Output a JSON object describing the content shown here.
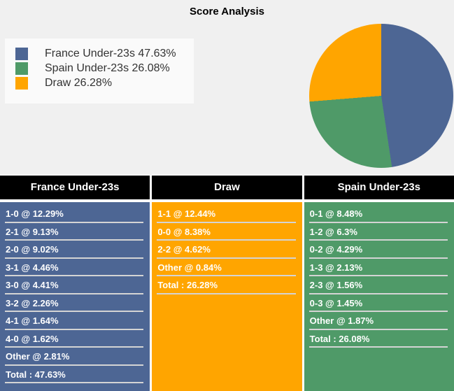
{
  "title": "Score Analysis",
  "colors": {
    "france_blue": "#4d6694",
    "spain_green": "#4f9a68",
    "draw_orange": "#ffa500",
    "header_bg": "#000000",
    "chart_area_bg": "#f0f0f0",
    "legend_bg": "#fafafa",
    "row_separator": "#d4d4d4"
  },
  "chart_data": {
    "type": "pie",
    "title": "Score Analysis",
    "start_angle_deg": 0,
    "direction": "clockwise",
    "legend_position": "left",
    "slices": [
      {
        "label": "France Under-23s",
        "value": 47.63,
        "color": "#4d6694"
      },
      {
        "label": "Spain Under-23s",
        "value": 26.08,
        "color": "#4f9a68"
      },
      {
        "label": "Draw",
        "value": 26.28,
        "color": "#ffa500"
      }
    ]
  },
  "legend": {
    "items": [
      {
        "text": "France Under-23s 47.63%",
        "color": "#4d6694"
      },
      {
        "text": "Spain Under-23s 26.08%",
        "color": "#4f9a68"
      },
      {
        "text": "Draw 26.28%",
        "color": "#ffa500"
      }
    ]
  },
  "tables": [
    {
      "header": "France Under-23s",
      "body_color": "#4d6694",
      "rows": [
        "1-0 @ 12.29%",
        "2-1 @ 9.13%",
        "2-0 @ 9.02%",
        "3-1 @ 4.46%",
        "3-0 @ 4.41%",
        "3-2 @ 2.26%",
        "4-1 @ 1.64%",
        "4-0 @ 1.62%",
        "Other @ 2.81%",
        "Total : 47.63%"
      ]
    },
    {
      "header": "Draw",
      "body_color": "#ffa500",
      "rows": [
        "1-1 @ 12.44%",
        "0-0 @ 8.38%",
        "2-2 @ 4.62%",
        "Other @ 0.84%",
        "Total : 26.28%"
      ]
    },
    {
      "header": "Spain Under-23s",
      "body_color": "#4f9a68",
      "rows": [
        "0-1 @ 8.48%",
        "1-2 @ 6.3%",
        "0-2 @ 4.29%",
        "1-3 @ 2.13%",
        "2-3 @ 1.56%",
        "0-3 @ 1.45%",
        "Other @ 1.87%",
        "Total : 26.08%"
      ]
    }
  ]
}
